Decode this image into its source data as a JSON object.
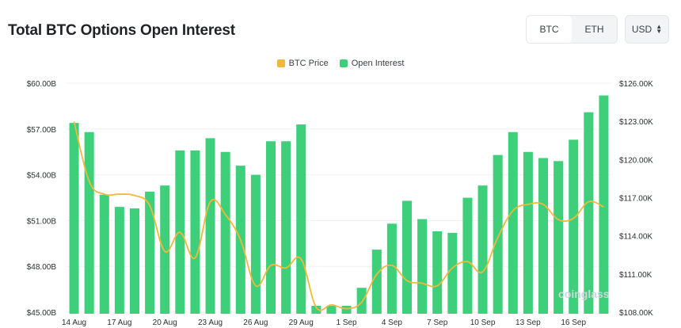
{
  "header": {
    "title": "Total BTC Options Open Interest",
    "asset_tabs": [
      "BTC",
      "ETH"
    ],
    "active_tab": "BTC",
    "currency": "USD"
  },
  "watermark": "coinglass",
  "chart_data": {
    "type": "bar",
    "legend": [
      {
        "name": "BTC Price",
        "color": "#f0b93a"
      },
      {
        "name": "Open Interest",
        "color": "#3ecf7a"
      }
    ],
    "x_tick_labels": [
      "14 Aug",
      "17 Aug",
      "20 Aug",
      "23 Aug",
      "26 Aug",
      "29 Aug",
      "1 Sep",
      "4 Sep",
      "7 Sep",
      "10 Sep",
      "13 Sep",
      "16 Sep"
    ],
    "y_left": {
      "ticks": [
        "$60.00B",
        "$57.00B",
        "$54.00B",
        "$51.00B",
        "$48.00B",
        "$45.00B"
      ],
      "range": [
        45,
        60
      ]
    },
    "y_right": {
      "ticks": [
        "$126.00K",
        "$123.00K",
        "$120.00K",
        "$117.00K",
        "$114.00K",
        "$111.00K",
        "$108.00K"
      ],
      "range": [
        108000,
        126000
      ]
    },
    "series": [
      {
        "name": "Open Interest",
        "axis": "left",
        "color": "#3ecf7a",
        "values": [
          57.5,
          56.9,
          52.8,
          52.0,
          51.9,
          53.0,
          53.4,
          55.7,
          55.7,
          56.5,
          55.6,
          54.7,
          54.1,
          56.3,
          56.3,
          57.4,
          45.0,
          44.7,
          44.6,
          46.7,
          49.2,
          50.9,
          52.4,
          51.2,
          50.4,
          50.3,
          52.6,
          53.4,
          55.4,
          56.9,
          55.6,
          55.2,
          55.0,
          56.4,
          58.2,
          59.3
        ]
      },
      {
        "name": "BTC Price",
        "axis": "right",
        "color": "#f0b93a",
        "values": [
          123100,
          118400,
          117400,
          117400,
          117300,
          116500,
          112900,
          114400,
          112400,
          116800,
          115800,
          113800,
          110200,
          111800,
          111600,
          112300,
          108500,
          108700,
          108400,
          108900,
          111100,
          111800,
          110600,
          110400,
          110200,
          111600,
          112100,
          111300,
          114000,
          116100,
          116600,
          116600,
          115400,
          115500,
          116800,
          116400
        ]
      }
    ]
  }
}
